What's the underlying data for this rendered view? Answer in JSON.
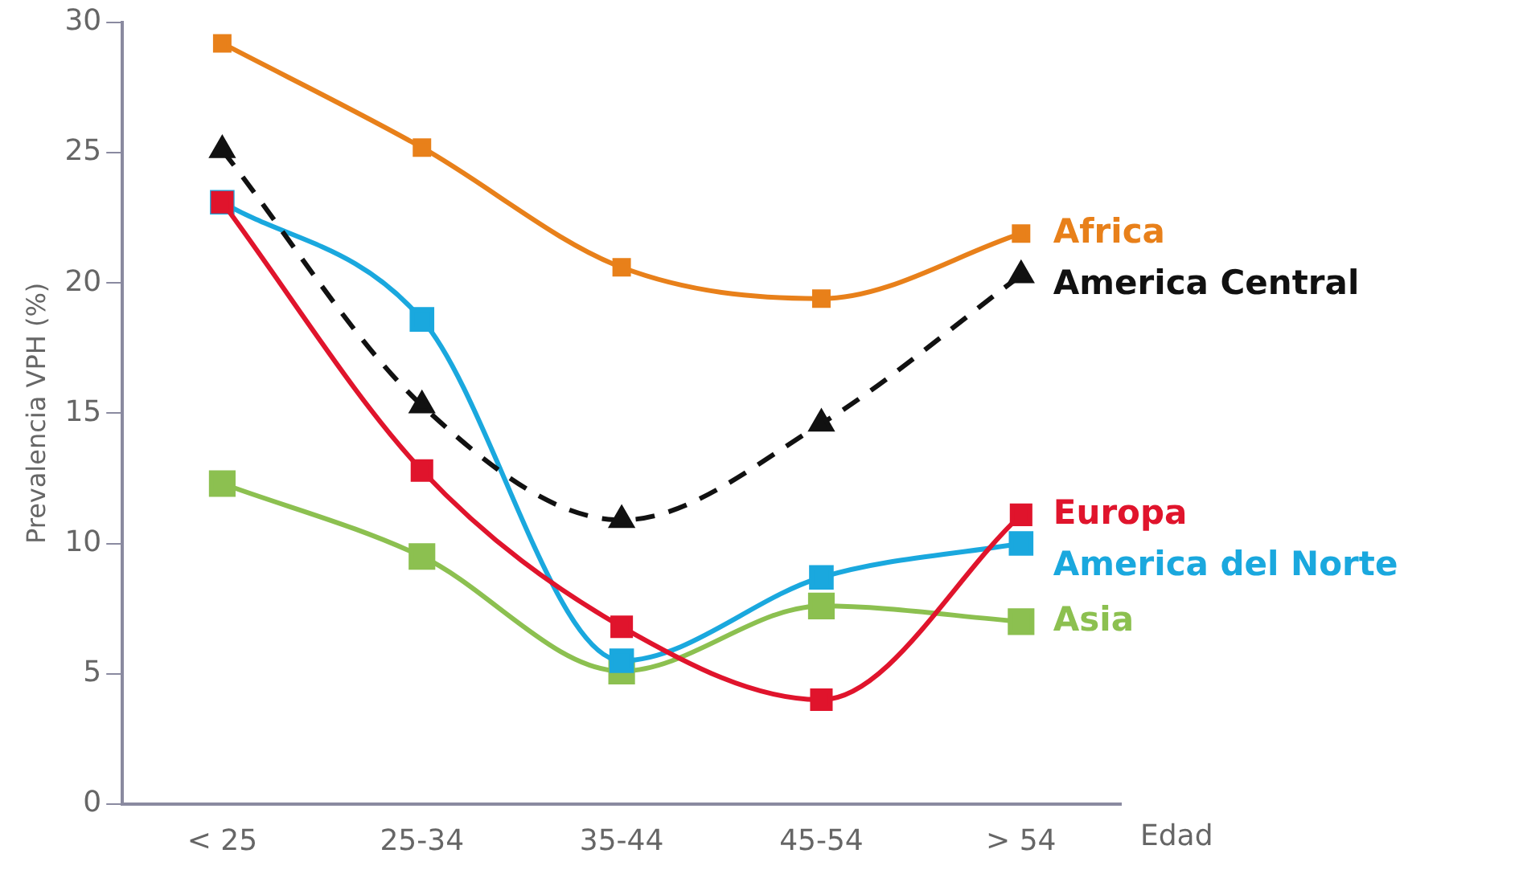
{
  "chart_data": {
    "type": "line",
    "xlabel": "Edad",
    "ylabel": "Prevalencia VPH (%)",
    "categories": [
      "< 25",
      "25-34",
      "35-44",
      "45-54",
      "> 54"
    ],
    "series": [
      {
        "name": "Africa",
        "color": "#e8801a",
        "marker": "square",
        "line_style": "solid",
        "values": [
          29.2,
          25.2,
          20.6,
          19.4,
          21.9
        ]
      },
      {
        "name": "America Central",
        "color": "#111111",
        "marker": "triangle",
        "line_style": "dashed",
        "values": [
          25.1,
          15.3,
          10.9,
          14.6,
          20.3
        ]
      },
      {
        "name": "Europa",
        "color": "#e0142c",
        "marker": "square",
        "line_style": "solid",
        "values": [
          23.1,
          12.8,
          6.8,
          4.0,
          11.1
        ]
      },
      {
        "name": "America del Norte",
        "color": "#1aa8de",
        "marker": "square",
        "line_style": "solid",
        "values": [
          23.1,
          18.6,
          5.5,
          8.7,
          10.0
        ]
      },
      {
        "name": "Asia",
        "color": "#8cc050",
        "marker": "square",
        "line_style": "solid",
        "values": [
          12.3,
          9.5,
          5.1,
          7.6,
          7.0
        ]
      }
    ],
    "ylim": [
      0,
      30
    ],
    "yticks": [
      0,
      5,
      10,
      15,
      20,
      25,
      30
    ],
    "grid": false,
    "legend": false
  }
}
